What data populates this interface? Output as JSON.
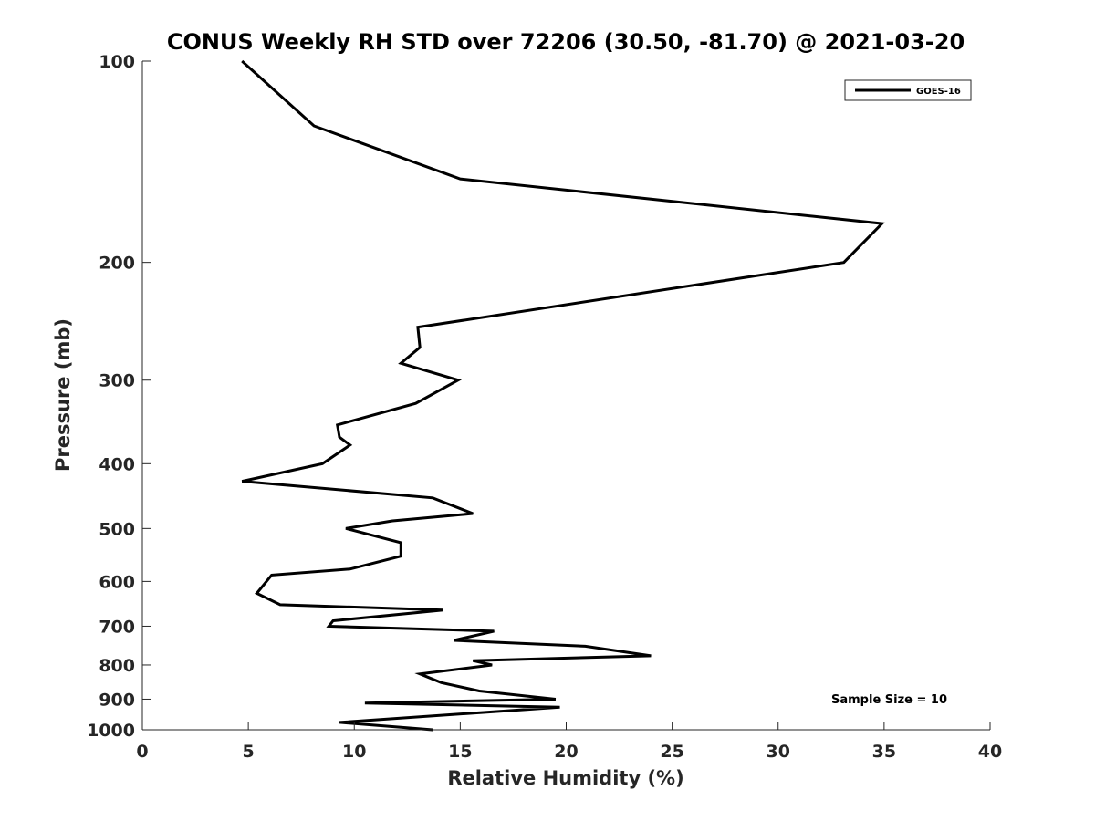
{
  "chart_data": {
    "type": "line",
    "title": "CONUS Weekly RH STD over 72206 (30.50, -81.70) @ 2021-03-20",
    "xlabel": "Relative Humidity (%)",
    "ylabel": "Pressure (mb)",
    "xlim": [
      0,
      40
    ],
    "ylim": [
      100,
      1000
    ],
    "y_scale": "log",
    "y_reversed": true,
    "x_ticks": [
      0,
      5,
      10,
      15,
      20,
      25,
      30,
      35,
      40
    ],
    "x_tick_labels": [
      "0",
      "5",
      "10",
      "15",
      "20",
      "25",
      "30",
      "35",
      "40"
    ],
    "y_ticks": [
      100,
      200,
      300,
      400,
      500,
      600,
      700,
      800,
      900,
      1000
    ],
    "y_tick_labels": [
      "100",
      "200",
      "300",
      "400",
      "500",
      "600",
      "700",
      "800",
      "900",
      "1000"
    ],
    "grid": false,
    "legend_position": "top-right",
    "annotation": "Sample Size = 10",
    "series": [
      {
        "name": "GOES-16",
        "color": "#000000",
        "x": [
          4.7,
          8.1,
          15.0,
          34.9,
          33.1,
          13.0,
          13.1,
          12.2,
          14.9,
          12.9,
          9.2,
          9.3,
          9.8,
          8.5,
          4.7,
          13.7,
          15.6,
          11.8,
          9.6,
          12.2,
          12.2,
          9.8,
          6.1,
          5.4,
          6.5,
          14.2,
          9.0,
          8.8,
          16.6,
          14.7,
          20.9,
          24.0,
          15.6,
          16.5,
          13.1,
          14.1,
          15.9,
          19.5,
          10.5,
          19.7,
          9.3,
          13.7
        ],
        "y": [
          100,
          125,
          150,
          175,
          200,
          250,
          268,
          283,
          300,
          325,
          350,
          365,
          375,
          400,
          425,
          450,
          475,
          487,
          500,
          525,
          550,
          575,
          587,
          625,
          650,
          662,
          687,
          700,
          712,
          735,
          750,
          775,
          788,
          800,
          825,
          850,
          875,
          900,
          912,
          925,
          975,
          1000
        ]
      }
    ]
  }
}
